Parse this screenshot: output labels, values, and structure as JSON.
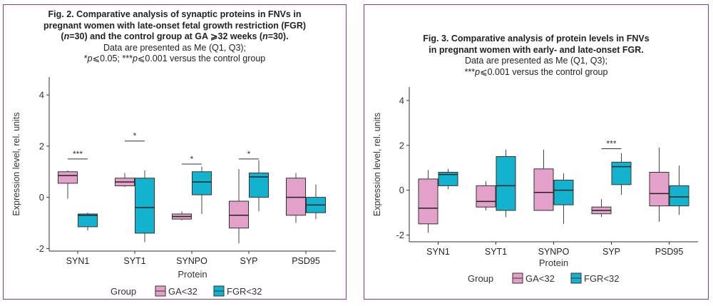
{
  "figures": [
    {
      "caption": {
        "title_lines": [
          "Fig. 2. Comparative analysis of synaptic proteins in FNVs in",
          "pregnant women with late-onset fetal growth restriction (FGR)",
          "(n=30) and the control group at GA ⩾32 weeks (n=30)."
        ],
        "note_lines": [
          "Data are presented as Me (Q1, Q3);",
          "*p⩽0.05; ***p⩽0.001 versus the control group"
        ]
      }
    },
    {
      "caption": {
        "title_lines": [
          "Fig. 3. Comparative analysis of protein levels in FNVs",
          "in pregnant women with early- and late-onset FGR."
        ],
        "note_lines": [
          "Data are presented as Me (Q1, Q3);",
          "***p⩽0.001 versus the control group"
        ]
      }
    }
  ],
  "chart_data": [
    {
      "type": "box",
      "categories": [
        "SYN1",
        "SYT1",
        "SYNPO",
        "SYP",
        "PSD95"
      ],
      "xlabel": "Protein",
      "ylabel": "Expression level, rel. units",
      "ylim": [
        -2.1,
        4.7
      ],
      "yticks": [
        -2,
        0,
        2,
        4
      ],
      "legend": {
        "title": "Group",
        "placement": "bottom"
      },
      "series": [
        {
          "name": "GA<32",
          "color": "#e3a1c9",
          "boxes": [
            {
              "whisker_low": -0.05,
              "q1": 0.55,
              "median": 0.85,
              "q3": 1.0,
              "whisker_high": 1.05
            },
            {
              "whisker_low": 0.4,
              "q1": 0.45,
              "median": 0.6,
              "q3": 0.75,
              "whisker_high": 0.95
            },
            {
              "whisker_low": -0.9,
              "q1": -0.85,
              "median": -0.75,
              "q3": -0.65,
              "whisker_high": -0.55
            },
            {
              "whisker_low": -1.8,
              "q1": -1.2,
              "median": -0.7,
              "q3": -0.15,
              "whisker_high": 1.1
            },
            {
              "whisker_low": -1.0,
              "q1": -0.7,
              "median": 0.0,
              "q3": 0.75,
              "whisker_high": 0.95
            }
          ]
        },
        {
          "name": "FGR<32",
          "color": "#13b3cf",
          "boxes": [
            {
              "whisker_low": -1.3,
              "q1": -1.15,
              "median": -0.7,
              "q3": -0.65,
              "whisker_high": -0.6
            },
            {
              "whisker_low": -1.75,
              "q1": -1.4,
              "median": -0.4,
              "q3": 0.75,
              "whisker_high": 1.05
            },
            {
              "whisker_low": -0.65,
              "q1": 0.1,
              "median": 0.6,
              "q3": 1.0,
              "whisker_high": 1.2
            },
            {
              "whisker_low": -0.55,
              "q1": 0.0,
              "median": 0.8,
              "q3": 0.95,
              "whisker_high": 1.45
            },
            {
              "whisker_low": -0.85,
              "q1": -0.6,
              "median": -0.3,
              "q3": 0.0,
              "whisker_high": 0.5
            }
          ]
        }
      ],
      "annotations": [
        {
          "category": "SYN1",
          "text": "***",
          "y": 1.5
        },
        {
          "category": "SYT1",
          "text": "*",
          "y": 2.2
        },
        {
          "category": "SYNPO",
          "text": "*",
          "y": 1.3
        },
        {
          "category": "SYP",
          "text": "*",
          "y": 1.5
        }
      ]
    },
    {
      "type": "box",
      "categories": [
        "SYN1",
        "SYT1",
        "SYNPO",
        "SYP",
        "PSD95"
      ],
      "xlabel": "Protein",
      "ylabel": "Expression level, rel. units",
      "ylim": [
        -2.3,
        4.6
      ],
      "yticks": [
        -2,
        0,
        2,
        4
      ],
      "legend": {
        "title": "Group",
        "placement": "bottom"
      },
      "series": [
        {
          "name": "GA<32",
          "color": "#e3a1c9",
          "boxes": [
            {
              "whisker_low": -1.9,
              "q1": -1.5,
              "median": -0.8,
              "q3": 0.5,
              "whisker_high": 0.9
            },
            {
              "whisker_low": -0.9,
              "q1": -0.75,
              "median": -0.5,
              "q3": 0.2,
              "whisker_high": 0.4
            },
            {
              "whisker_low": -0.9,
              "q1": -0.9,
              "median": -0.1,
              "q3": 0.95,
              "whisker_high": 1.8
            },
            {
              "whisker_low": -1.2,
              "q1": -1.05,
              "median": -0.9,
              "q3": -0.75,
              "whisker_high": -0.4
            },
            {
              "whisker_low": -1.4,
              "q1": -0.7,
              "median": -0.15,
              "q3": 0.8,
              "whisker_high": 1.9
            }
          ]
        },
        {
          "name": "FGR<32",
          "color": "#13b3cf",
          "boxes": [
            {
              "whisker_low": 0.05,
              "q1": 0.2,
              "median": 0.7,
              "q3": 0.8,
              "whisker_high": 0.95
            },
            {
              "whisker_low": -1.2,
              "q1": -0.9,
              "median": 0.2,
              "q3": 1.5,
              "whisker_high": 1.8
            },
            {
              "whisker_low": -1.5,
              "q1": -0.65,
              "median": 0.0,
              "q3": 0.45,
              "whisker_high": 0.75
            },
            {
              "whisker_low": -0.2,
              "q1": 0.25,
              "median": 1.05,
              "q3": 1.25,
              "whisker_high": 1.65
            },
            {
              "whisker_low": -1.1,
              "q1": -0.7,
              "median": -0.3,
              "q3": 0.2,
              "whisker_high": 1.1
            }
          ]
        }
      ],
      "annotations": [
        {
          "category": "SYP",
          "text": "***",
          "y": 1.85
        }
      ]
    }
  ]
}
